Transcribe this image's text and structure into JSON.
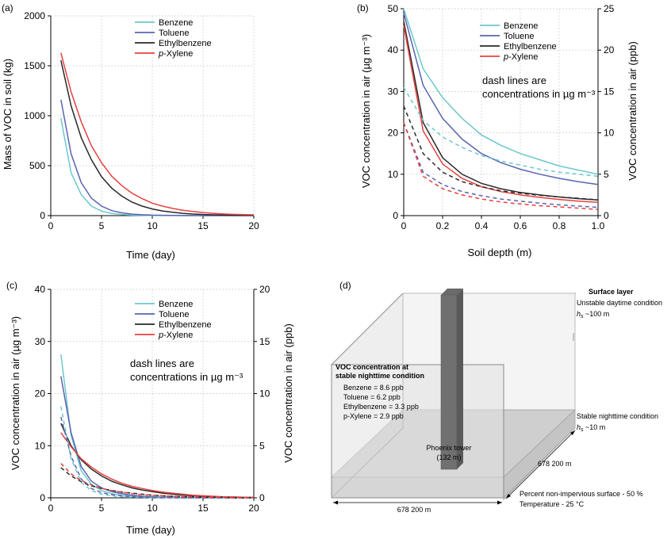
{
  "colors": {
    "Benzene": "#6cc8cc",
    "Toluene": "#5a64b0",
    "Ethylbenzene": "#2a2a2a",
    "p-Xylene": "#e84040"
  },
  "panels": {
    "a": {
      "letter": "(a)"
    },
    "b": {
      "letter": "(b)",
      "note_line1": "dash lines are",
      "note_line2": "concentrations in µg m⁻³"
    },
    "c": {
      "letter": "(c)",
      "note_line1": "dash lines are",
      "note_line2": "concentrations in µg m⁻³"
    },
    "d": {
      "letter": "(d)",
      "surface_title": "Surface layer",
      "surface_cond": "Unstable daytime condition",
      "surface_h": "h",
      "surface_h_sub": "s",
      "surface_h_val": " ~100 m",
      "stable_cond": "Stable nighttime condition",
      "stable_h": "h",
      "stable_h_sub": "s",
      "stable_h_val": " ~10 m",
      "voc_title_1": "VOC concentration at",
      "voc_title_2": "stable nighttime condition",
      "voc_lines": [
        "Benzene = 8.6 ppb",
        "Toluene = 6.2 ppb",
        "Ethylbenzene = 3.3 ppb",
        "p-Xylene = 2.9 ppb"
      ],
      "tower_label_1": "Phoenix tower",
      "tower_label_2": "(132 m)",
      "dim_depth": "678 200 m",
      "dim_width": "678 200 m",
      "surface_info_1": "Percent non-impervious surface - 50 %",
      "surface_info_2": "Temperature - 25 °C"
    }
  },
  "chart_data": [
    {
      "id": "a",
      "type": "line",
      "xlabel": "Time (day)",
      "ylabel": "Mass of VOC in soil (kg)",
      "xlim": [
        0,
        20
      ],
      "ylim": [
        0,
        2000
      ],
      "xticks": [
        0,
        5,
        10,
        15,
        20
      ],
      "yticks": [
        0,
        500,
        1000,
        1500,
        2000
      ],
      "grid": true,
      "legend": "top-right",
      "x": [
        1,
        2,
        3,
        4,
        5,
        6,
        7,
        8,
        9,
        10,
        11,
        12,
        13,
        14,
        15,
        16,
        17,
        18,
        19,
        20
      ],
      "series": [
        {
          "name": "Benzene",
          "style": "solid",
          "values": [
            975,
            430,
            210,
            95,
            45,
            22,
            11,
            5,
            3,
            2,
            1,
            1,
            0,
            0,
            0,
            0,
            0,
            0,
            0,
            0
          ]
        },
        {
          "name": "Toluene",
          "style": "solid",
          "values": [
            1160,
            620,
            330,
            175,
            95,
            50,
            28,
            15,
            9,
            5,
            3,
            2,
            1,
            1,
            0,
            0,
            0,
            0,
            0,
            0
          ]
        },
        {
          "name": "Ethylbenzene",
          "style": "solid",
          "values": [
            1555,
            1100,
            780,
            560,
            390,
            275,
            195,
            135,
            95,
            67,
            47,
            33,
            23,
            16,
            11,
            8,
            6,
            4,
            3,
            2
          ]
        },
        {
          "name": "p-Xylene",
          "style": "solid",
          "values": [
            1630,
            1240,
            940,
            700,
            530,
            395,
            300,
            225,
            170,
            125,
            95,
            72,
            54,
            41,
            31,
            23,
            17,
            13,
            10,
            8
          ]
        }
      ]
    },
    {
      "id": "b",
      "type": "line",
      "xlabel": "Soil depth (m)",
      "ylabel": "VOC concentration in air (µg m⁻³)",
      "ylabel_right": "VOC concentration in air (ppb)",
      "xlim": [
        0,
        1
      ],
      "ylim": [
        0,
        50
      ],
      "ylim_right": [
        0,
        25
      ],
      "xticks": [
        0,
        0.2,
        0.4,
        0.6,
        0.8,
        1.0
      ],
      "xtick_labels": [
        "0",
        "0.2",
        "0.4",
        "0.6",
        "0.8",
        "1.0"
      ],
      "yticks": [
        0,
        10,
        20,
        30,
        40,
        50
      ],
      "yticks_right": [
        0,
        5,
        10,
        15,
        20,
        25
      ],
      "grid": true,
      "legend": "top-right",
      "x": [
        0,
        0.1,
        0.2,
        0.3,
        0.4,
        0.5,
        0.6,
        0.7,
        0.8,
        0.9,
        1.0
      ],
      "series": [
        {
          "name": "Benzene",
          "style": "solid",
          "values": [
            50,
            35.5,
            28.5,
            23.5,
            19.5,
            17,
            15,
            13.5,
            12,
            11,
            10
          ]
        },
        {
          "name": "Toluene",
          "style": "solid",
          "values": [
            49,
            31.5,
            23.5,
            18.5,
            15,
            12.8,
            11.2,
            10,
            9,
            8.2,
            7.5
          ]
        },
        {
          "name": "Ethylbenzene",
          "style": "solid",
          "values": [
            47,
            22.5,
            14,
            10,
            7.8,
            6.5,
            5.6,
            5,
            4.5,
            4.1,
            3.8
          ]
        },
        {
          "name": "p-Xylene",
          "style": "solid",
          "values": [
            46,
            20.5,
            12.5,
            9,
            7,
            5.8,
            5,
            4.4,
            3.9,
            3.5,
            3.2
          ]
        },
        {
          "name": "Benzene",
          "style": "dash",
          "values": [
            31,
            23,
            19,
            16.5,
            14.5,
            13.2,
            12.2,
            11.2,
            10.5,
            10,
            9.5
          ]
        },
        {
          "name": "Toluene",
          "style": "dash",
          "values": [
            22.5,
            10.5,
            7.5,
            5.8,
            4.8,
            4,
            3.5,
            3,
            2.6,
            2.3,
            2
          ]
        },
        {
          "name": "Ethylbenzene",
          "style": "dash",
          "values": [
            26.5,
            15,
            10.5,
            8.2,
            7,
            6,
            5.4,
            4.9,
            4.5,
            4.2,
            3.8
          ]
        },
        {
          "name": "p-Xylene",
          "style": "dash",
          "values": [
            22.5,
            9.5,
            6.5,
            5,
            4,
            3.3,
            2.8,
            2.4,
            2.1,
            1.8,
            1.5
          ]
        }
      ]
    },
    {
      "id": "c",
      "type": "line",
      "xlabel": "Time (day)",
      "ylabel": "VOC concentration in air (µg m⁻³)",
      "ylabel_right": "VOC concentration in air (ppb)",
      "xlim": [
        0,
        20
      ],
      "ylim": [
        0,
        40
      ],
      "ylim_right": [
        0,
        20
      ],
      "xticks": [
        0,
        5,
        10,
        15,
        20
      ],
      "yticks": [
        0,
        10,
        20,
        30,
        40
      ],
      "yticks_right": [
        0,
        5,
        10,
        15,
        20
      ],
      "grid": true,
      "legend": "top-right",
      "x": [
        1,
        2,
        3,
        4,
        5,
        6,
        7,
        8,
        9,
        10,
        11,
        12,
        13,
        14,
        15,
        16,
        17,
        18,
        19,
        20
      ],
      "series": [
        {
          "name": "Benzene",
          "style": "solid",
          "values": [
            27.5,
            12,
            5.2,
            2.6,
            1.4,
            0.8,
            0.5,
            0.3,
            0.2,
            0.1,
            0.1,
            0,
            0,
            0,
            0,
            0,
            0,
            0,
            0,
            0
          ]
        },
        {
          "name": "Toluene",
          "style": "solid",
          "values": [
            23.3,
            12.5,
            6,
            3.2,
            1.9,
            1.2,
            0.8,
            0.5,
            0.3,
            0.2,
            0.1,
            0.1,
            0,
            0,
            0,
            0,
            0,
            0,
            0,
            0
          ]
        },
        {
          "name": "Ethylbenzene",
          "style": "solid",
          "values": [
            14.3,
            10,
            7.3,
            5.5,
            4.2,
            3.2,
            2.5,
            1.9,
            1.5,
            1.2,
            0.9,
            0.7,
            0.5,
            0.4,
            0.3,
            0.2,
            0.2,
            0.1,
            0.1,
            0.1
          ]
        },
        {
          "name": "p-Xylene",
          "style": "solid",
          "values": [
            12.5,
            9.8,
            7.5,
            5.9,
            4.6,
            3.6,
            2.8,
            2.2,
            1.8,
            1.4,
            1.1,
            0.9,
            0.7,
            0.5,
            0.4,
            0.3,
            0.2,
            0.2,
            0.1,
            0.1
          ]
        },
        {
          "name": "Benzene",
          "style": "dash",
          "values": [
            17.5,
            7.5,
            3,
            1.4,
            0.7,
            0.4,
            0.2,
            0.1,
            0.1,
            0,
            0,
            0,
            0,
            0,
            0,
            0,
            0,
            0,
            0,
            0
          ]
        },
        {
          "name": "Toluene",
          "style": "dash",
          "values": [
            15.5,
            8,
            3.6,
            1.8,
            1,
            0.6,
            0.4,
            0.2,
            0.1,
            0.1,
            0,
            0,
            0,
            0,
            0,
            0,
            0,
            0,
            0,
            0
          ]
        },
        {
          "name": "Ethylbenzene",
          "style": "dash",
          "values": [
            5.8,
            4.2,
            3.1,
            2.3,
            1.8,
            1.4,
            1.1,
            0.9,
            0.7,
            0.5,
            0.4,
            0.3,
            0.2,
            0.2,
            0.1,
            0.1,
            0.1,
            0,
            0,
            0
          ]
        },
        {
          "name": "p-Xylene",
          "style": "dash",
          "values": [
            6.6,
            4.6,
            3.3,
            2.5,
            1.8,
            1.4,
            1.1,
            0.8,
            0.6,
            0.5,
            0.4,
            0.3,
            0.2,
            0.2,
            0.1,
            0.1,
            0.1,
            0,
            0,
            0
          ]
        }
      ]
    }
  ]
}
